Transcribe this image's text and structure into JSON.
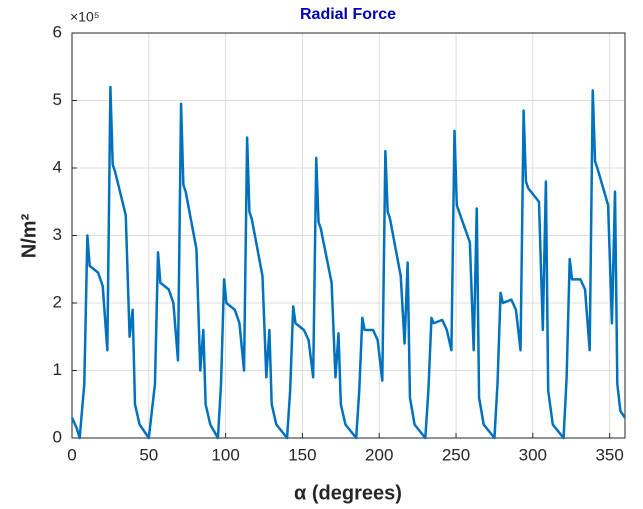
{
  "chart_data": {
    "type": "line",
    "title": "Radial Force",
    "xlabel": "α (degrees)",
    "ylabel": "N/m²",
    "y_multiplier": "×10⁵",
    "color": "#0072bd",
    "title_color": "#0000b4",
    "grid": true,
    "xlim": [
      0,
      360
    ],
    "ylim": [
      0,
      6
    ],
    "xticks": [
      0,
      50,
      100,
      150,
      200,
      250,
      300,
      350
    ],
    "yticks": [
      0,
      1,
      2,
      3,
      4,
      5,
      6
    ],
    "x": [
      0,
      3,
      5,
      8,
      10,
      11.5,
      17,
      20,
      23,
      25,
      26.5,
      28,
      35,
      37.5,
      39.5,
      41,
      44,
      50,
      54,
      56,
      57.5,
      63,
      66,
      69,
      71,
      72.5,
      74,
      81,
      83.5,
      85.5,
      87,
      90,
      95,
      97,
      99,
      100.5,
      106,
      109,
      112,
      114,
      115.5,
      117,
      124,
      126.5,
      128.5,
      130,
      133,
      140,
      142,
      144,
      145.5,
      151,
      154,
      157,
      159,
      160.5,
      162,
      169,
      171.5,
      173.5,
      175,
      178,
      185,
      187,
      189,
      190.5,
      196,
      199,
      202,
      204,
      205.5,
      207,
      214,
      216.5,
      218.5,
      220,
      223,
      230,
      232,
      234,
      235.5,
      241,
      244,
      247,
      249,
      250.5,
      252,
      259,
      261.5,
      263.5,
      265,
      268,
      275,
      277,
      279,
      280.5,
      286,
      289,
      292,
      294,
      295.5,
      297,
      304,
      306.5,
      308.5,
      310,
      313,
      320,
      322,
      324,
      325.5,
      331,
      334,
      337,
      339,
      340.5,
      342,
      349,
      351.5,
      353.5,
      355,
      357,
      360
    ],
    "values": [
      0.3,
      0.15,
      0,
      0.8,
      3.0,
      2.55,
      2.45,
      2.25,
      1.3,
      5.2,
      4.05,
      3.95,
      3.3,
      1.5,
      1.9,
      0.5,
      0.2,
      0,
      0.8,
      2.75,
      2.3,
      2.2,
      2.0,
      1.15,
      4.95,
      3.75,
      3.65,
      2.8,
      1.0,
      1.6,
      0.5,
      0.2,
      0,
      0.8,
      2.35,
      2.0,
      1.9,
      1.7,
      1.0,
      4.45,
      3.35,
      3.25,
      2.4,
      0.9,
      1.6,
      0.5,
      0.2,
      0,
      0.7,
      1.95,
      1.7,
      1.6,
      1.45,
      0.9,
      4.15,
      3.2,
      3.1,
      2.3,
      0.9,
      1.55,
      0.5,
      0.2,
      0,
      0.7,
      1.78,
      1.6,
      1.6,
      1.45,
      0.85,
      4.25,
      3.35,
      3.25,
      2.4,
      1.4,
      2.6,
      0.6,
      0.2,
      0,
      0.7,
      1.78,
      1.7,
      1.75,
      1.6,
      1.3,
      4.55,
      3.45,
      3.35,
      2.9,
      1.3,
      3.4,
      0.6,
      0.2,
      0,
      0.8,
      2.15,
      2.0,
      2.05,
      1.9,
      1.3,
      4.85,
      3.8,
      3.7,
      3.5,
      1.6,
      3.8,
      0.7,
      0.2,
      0,
      0.9,
      2.65,
      2.35,
      2.35,
      2.2,
      1.3,
      5.15,
      4.1,
      4.0,
      3.45,
      1.7,
      3.65,
      0.8,
      0.4,
      0.3
    ]
  }
}
